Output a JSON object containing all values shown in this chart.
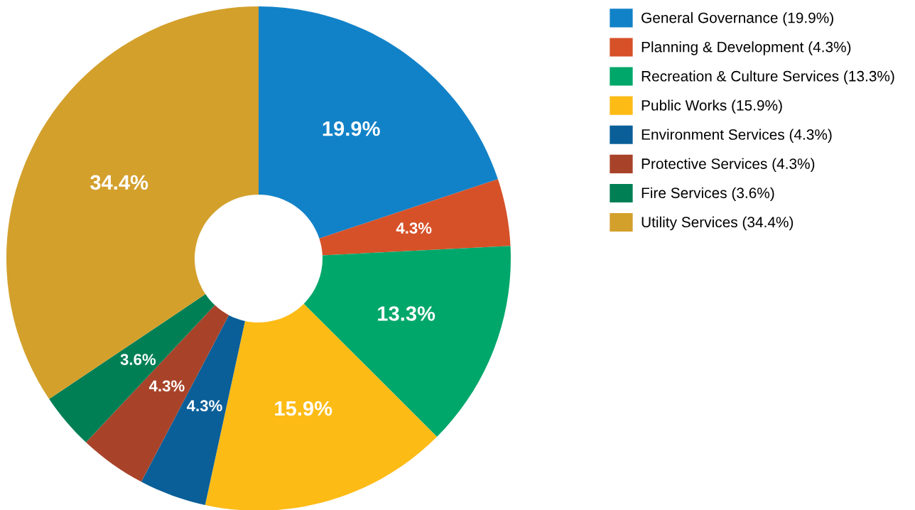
{
  "chart_data": {
    "type": "donut",
    "categories": [
      "General Governance (19.9%)",
      "Planning & Development (4.3%)",
      "Recreation & Culture Services (13.3%)",
      "Public Works (15.9%)",
      "Environment Services (4.3%)",
      "Protective Services (4.3%)",
      "Fire Services (3.6%)",
      "Utility Services (34.4%)"
    ],
    "values": [
      19.9,
      4.3,
      13.3,
      15.9,
      4.3,
      4.3,
      3.6,
      34.4
    ],
    "colors": [
      "#1282c8",
      "#d65128",
      "#00a76a",
      "#fdbb16",
      "#0a5f98",
      "#a8432a",
      "#007f55",
      "#d3a02c"
    ],
    "value_labels": [
      "19.9%",
      "4.3%",
      "13.3%",
      "15.9%",
      "4.3%",
      "4.3%",
      "3.6%",
      "34.4%"
    ],
    "legend": "top right"
  }
}
